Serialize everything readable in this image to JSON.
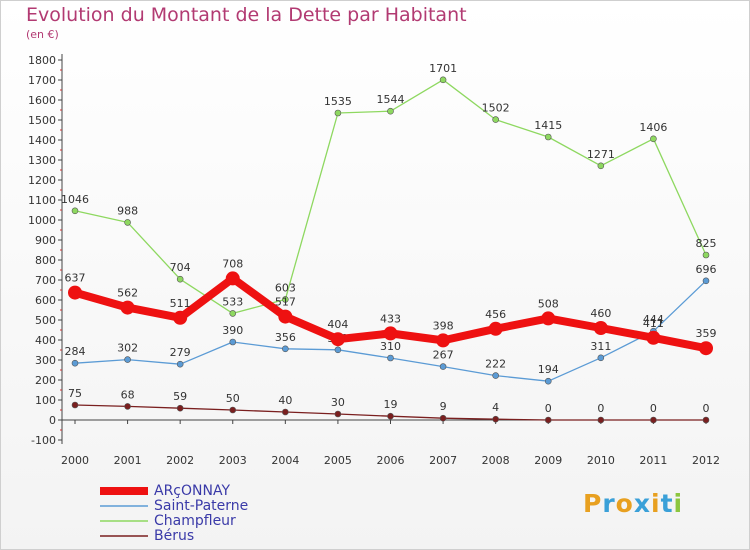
{
  "header": {
    "title": "Evolution du Montant de la Dette par Habitant",
    "subtitle": "(en €)"
  },
  "logo": {
    "text": "Proxiti",
    "letter_colors": [
      "#e8a020",
      "#3aa0d8",
      "#e8a020",
      "#3aa0d8",
      "#e8a020",
      "#3aa0d8",
      "#8cc63f"
    ]
  },
  "chart_data": {
    "type": "line",
    "title": "Evolution du Montant de la Dette par Habitant",
    "subtitle": "(en €)",
    "x": [
      "2000",
      "2001",
      "2002",
      "2003",
      "2004",
      "2005",
      "2006",
      "2007",
      "2008",
      "2009",
      "2010",
      "2011",
      "2012"
    ],
    "ylim": [
      -100,
      1800
    ],
    "yticks": [
      -100,
      0,
      100,
      200,
      300,
      400,
      500,
      600,
      700,
      800,
      900,
      1000,
      1100,
      1200,
      1300,
      1400,
      1500,
      1600,
      1700,
      1800
    ],
    "grid": false,
    "legend_position": "bottom-left",
    "series": [
      {
        "name": "ARçONNAY",
        "color": "#ee1111",
        "values": [
          637,
          562,
          511,
          708,
          517,
          404,
          433,
          398,
          456,
          508,
          460,
          411,
          359
        ]
      },
      {
        "name": "Saint-Paterne",
        "color": "#5b9bd5",
        "values": [
          284,
          302,
          279,
          390,
          356,
          351,
          310,
          267,
          222,
          194,
          311,
          444,
          696
        ]
      },
      {
        "name": "Champfleur",
        "color": "#8ed860",
        "values": [
          1046,
          988,
          704,
          533,
          603,
          1535,
          1544,
          1701,
          1502,
          1415,
          1271,
          1406,
          825
        ]
      },
      {
        "name": "Bérus",
        "color": "#7a1f1f",
        "values": [
          75,
          68,
          59,
          50,
          40,
          30,
          19,
          9,
          4,
          0,
          0,
          0,
          0
        ]
      }
    ]
  }
}
